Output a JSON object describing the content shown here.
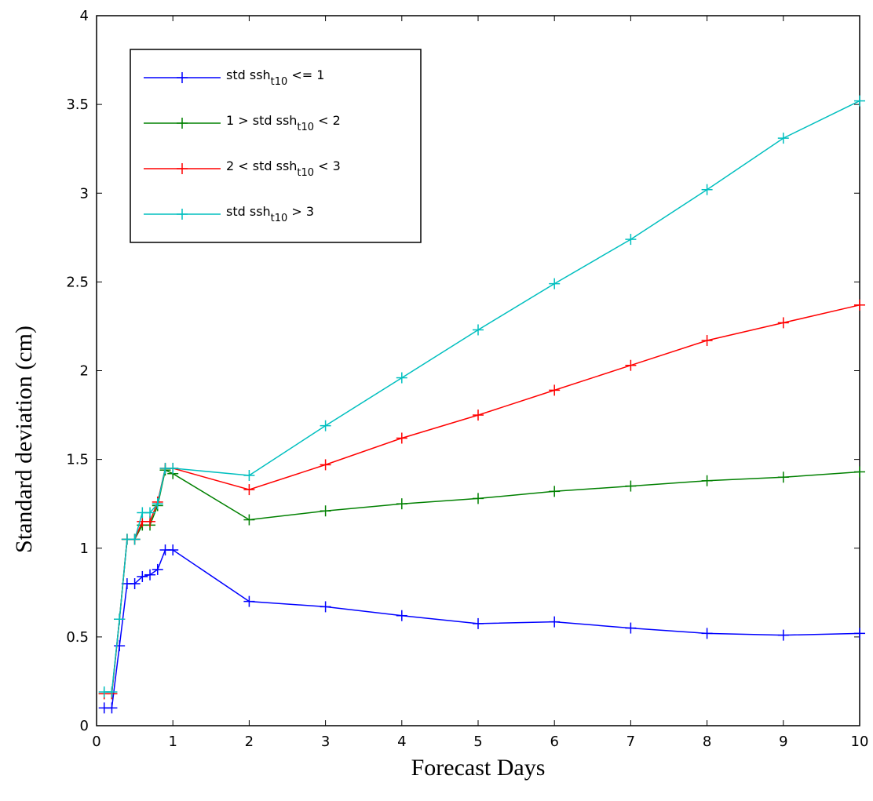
{
  "chart_data": {
    "type": "line",
    "title": "",
    "xlabel": "Forecast Days",
    "ylabel": "Standard  deviation (cm)",
    "xlim": [
      0,
      10
    ],
    "ylim": [
      0,
      4
    ],
    "xticks": [
      "0",
      "1",
      "2",
      "3",
      "4",
      "5",
      "6",
      "7",
      "8",
      "9",
      "10"
    ],
    "yticks": [
      "0",
      "0.5",
      "1",
      "1.5",
      "2",
      "2.5",
      "3",
      "3.5",
      "4"
    ],
    "grid": false,
    "legend_position": "top-left",
    "series": [
      {
        "name": "std ssh",
        "name_sub": "t10",
        "name_tail": " <= 1",
        "color": "#0000ff",
        "x": [
          0.1,
          0.2,
          0.3,
          0.4,
          0.5,
          0.6,
          0.7,
          0.8,
          0.9,
          1,
          2,
          3,
          4,
          5,
          6,
          7,
          8,
          9,
          10
        ],
        "y": [
          0.1,
          0.1,
          0.45,
          0.8,
          0.8,
          0.84,
          0.85,
          0.88,
          0.99,
          0.99,
          0.7,
          0.67,
          0.62,
          0.575,
          0.585,
          0.55,
          0.52,
          0.51,
          0.52
        ]
      },
      {
        "name": "1 > std ssh",
        "name_sub": "t10",
        "name_tail": " < 2",
        "color": "#008000",
        "x": [
          0.1,
          0.2,
          0.3,
          0.4,
          0.5,
          0.6,
          0.7,
          0.8,
          0.9,
          1,
          2,
          3,
          4,
          5,
          6,
          7,
          8,
          9,
          10
        ],
        "y": [
          0.18,
          0.18,
          0.6,
          1.05,
          1.05,
          1.13,
          1.13,
          1.24,
          1.44,
          1.42,
          1.16,
          1.21,
          1.25,
          1.28,
          1.32,
          1.35,
          1.38,
          1.4,
          1.43
        ]
      },
      {
        "name": "2 < std ssh",
        "name_sub": "t10",
        "name_tail": " < 3",
        "color": "#ff0000",
        "x": [
          0.1,
          0.2,
          0.3,
          0.4,
          0.5,
          0.6,
          0.7,
          0.8,
          0.9,
          1,
          2,
          3,
          4,
          5,
          6,
          7,
          8,
          9,
          10
        ],
        "y": [
          0.18,
          0.18,
          0.6,
          1.05,
          1.05,
          1.15,
          1.15,
          1.26,
          1.45,
          1.45,
          1.33,
          1.47,
          1.62,
          1.75,
          1.89,
          2.03,
          2.17,
          2.27,
          2.37
        ]
      },
      {
        "name": "std ssh",
        "name_sub": "t10",
        "name_tail": " > 3",
        "color": "#00bfbf",
        "x": [
          0.1,
          0.2,
          0.3,
          0.4,
          0.5,
          0.6,
          0.7,
          0.8,
          0.9,
          1,
          2,
          3,
          4,
          5,
          6,
          7,
          8,
          9,
          10
        ],
        "y": [
          0.19,
          0.19,
          0.6,
          1.05,
          1.05,
          1.2,
          1.2,
          1.25,
          1.45,
          1.45,
          1.41,
          1.69,
          1.96,
          2.23,
          2.49,
          2.74,
          3.02,
          3.31,
          3.52
        ]
      }
    ]
  }
}
